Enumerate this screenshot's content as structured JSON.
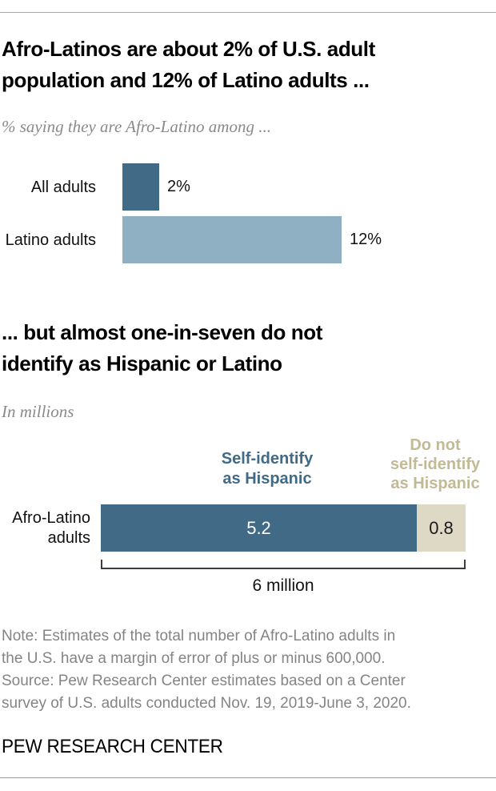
{
  "chart_data": [
    {
      "type": "bar",
      "orientation": "horizontal",
      "title": "Afro-Latinos are about 2% of U.S. adult population and 12% of Latino adults ...",
      "subtitle": "% saying they are Afro-Latino among ...",
      "categories": [
        "All adults",
        "Latino adults"
      ],
      "values": [
        2,
        12
      ],
      "value_labels": [
        "2%",
        "12%"
      ],
      "unit": "percent",
      "xlim": [
        0,
        12
      ],
      "grid": false,
      "bar_colors": [
        "#406a85",
        "#8fafc3"
      ]
    },
    {
      "type": "bar",
      "subtype": "stacked",
      "orientation": "horizontal",
      "title": "... but almost one-in-seven do not identify as Hispanic or Latino",
      "subtitle": "In millions",
      "categories": [
        "Afro-Latino adults"
      ],
      "series": [
        {
          "name": "Self-identify as Hispanic",
          "value": 5.2,
          "color": "#406a85"
        },
        {
          "name": "Do not self-identify as Hispanic",
          "value": 0.8,
          "color": "#ded9c5"
        }
      ],
      "total": 6,
      "total_label": "6 million",
      "legend_position": "top"
    }
  ],
  "section1": {
    "title_lines": [
      "Afro-Latinos are about 2% of U.S. adult",
      "population and 12% of Latino adults ..."
    ],
    "subtitle": "% saying they are Afro-Latino among ..."
  },
  "section2": {
    "title_lines": [
      "... but almost one-in-seven do not",
      "identify as Hispanic or Latino"
    ],
    "subtitle": "In millions",
    "legend_hispanic_lines": [
      "Self-identify",
      "as Hispanic"
    ],
    "legend_not_hispanic_lines": [
      "Do not",
      "self-identify",
      "as Hispanic"
    ],
    "bar_label_lines": [
      "Afro-Latino",
      "adults"
    ],
    "total_label": "6 million"
  },
  "note": {
    "lines": [
      "Note: Estimates of the total number of Afro-Latino adults in",
      "the U.S. have a margin of error of plus or minus 600,000.",
      "Source: Pew Research Center estimates based on a Center",
      "survey of U.S. adults conducted Nov. 19, 2019-June 3, 2020."
    ]
  },
  "footer": {
    "brand": "PEW RESEARCH CENTER"
  },
  "colors": {
    "dark_blue": "#406a85",
    "light_blue": "#8fafc3",
    "beige": "#ded9c5",
    "tan_text": "#c2b995",
    "note_gray": "#848484"
  }
}
